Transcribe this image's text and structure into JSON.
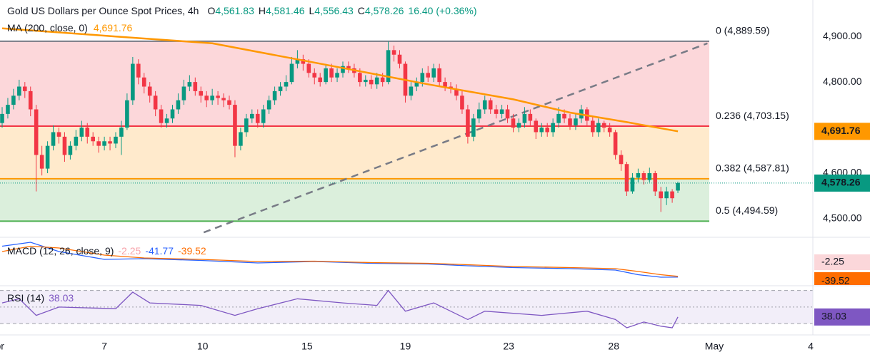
{
  "chart_data": {
    "type": "candlestick",
    "title": "Gold US Dollars per Ounce Spot Prices, 4h",
    "ohlc_legend": [
      {
        "key": "O",
        "label": "4,561.83"
      },
      {
        "key": "H",
        "label": "4,581.46"
      },
      {
        "key": "L",
        "label": "4,556.43"
      },
      {
        "key": "C",
        "label": "4,578.26"
      }
    ],
    "change_label": "16.40 (+0.36%)",
    "last_price_label": "4,578.26",
    "up_color": "#089981",
    "down_color": "#f23645",
    "open": [
      4710,
      4730,
      4750,
      4770,
      4790,
      4780,
      4740,
      4640,
      4610,
      4660,
      4690,
      4680,
      4640,
      4660,
      4680,
      4700,
      4680,
      4670,
      4660,
      4670,
      4665,
      4680,
      4700,
      4760,
      4840,
      4810,
      4790,
      4770,
      4740,
      4710,
      4720,
      4740,
      4760,
      4790,
      4800,
      4780,
      4770,
      4760,
      4770,
      4765,
      4760,
      4750,
      4660,
      4690,
      4720,
      4730,
      4710,
      4740,
      4760,
      4780,
      4790,
      4800,
      4840,
      4850,
      4840,
      4820,
      4810,
      4800,
      4830,
      4810,
      4820,
      4835,
      4830,
      4820,
      4800,
      4805,
      4795,
      4810,
      4800,
      4870,
      4860,
      4840,
      4770,
      4790,
      4800,
      4820,
      4810,
      4830,
      4800,
      4790,
      4785,
      4770,
      4740,
      4680,
      4720,
      4740,
      4760,
      4740,
      4730,
      4740,
      4720,
      4700,
      4710,
      4730,
      4715,
      4690,
      4700,
      4690,
      4710,
      4730,
      4720,
      4705,
      4720,
      4740,
      4715,
      4690,
      4710,
      4700,
      4690,
      4640,
      4620,
      4560,
      4590,
      4600,
      4585,
      4600,
      4560,
      4545,
      4560,
      4561.83
    ],
    "high": [
      4745,
      4765,
      4785,
      4805,
      4800,
      4790,
      4750,
      4660,
      4670,
      4705,
      4700,
      4690,
      4670,
      4695,
      4715,
      4710,
      4690,
      4680,
      4680,
      4680,
      4690,
      4715,
      4775,
      4855,
      4850,
      4820,
      4800,
      4780,
      4750,
      4730,
      4750,
      4775,
      4805,
      4815,
      4810,
      4790,
      4780,
      4785,
      4780,
      4775,
      4770,
      4760,
      4700,
      4730,
      4740,
      4740,
      4750,
      4770,
      4790,
      4800,
      4815,
      4855,
      4870,
      4860,
      4850,
      4830,
      4820,
      4840,
      4840,
      4830,
      4845,
      4845,
      4840,
      4830,
      4815,
      4815,
      4820,
      4820,
      4889,
      4880,
      4870,
      4845,
      4800,
      4810,
      4830,
      4835,
      4840,
      4840,
      4810,
      4800,
      4795,
      4780,
      4750,
      4730,
      4755,
      4770,
      4765,
      4750,
      4750,
      4750,
      4730,
      4720,
      4745,
      4740,
      4720,
      4710,
      4710,
      4720,
      4745,
      4740,
      4730,
      4730,
      4750,
      4745,
      4725,
      4720,
      4715,
      4710,
      4695,
      4650,
      4625,
      4600,
      4610,
      4605,
      4612,
      4605,
      4570,
      4570,
      4565,
      4581.46
    ],
    "low": [
      4700,
      4720,
      4740,
      4760,
      4765,
      4725,
      4560,
      4595,
      4600,
      4650,
      4665,
      4625,
      4630,
      4650,
      4670,
      4665,
      4660,
      4645,
      4650,
      4650,
      4655,
      4640,
      4695,
      4750,
      4795,
      4775,
      4755,
      4725,
      4700,
      4700,
      4710,
      4730,
      4750,
      4780,
      4770,
      4755,
      4745,
      4750,
      4750,
      4745,
      4740,
      4635,
      4650,
      4680,
      4710,
      4700,
      4700,
      4730,
      4750,
      4770,
      4780,
      4795,
      4830,
      4825,
      4810,
      4795,
      4790,
      4795,
      4800,
      4800,
      4810,
      4820,
      4810,
      4790,
      4790,
      4785,
      4785,
      4790,
      4795,
      4845,
      4830,
      4755,
      4760,
      4780,
      4790,
      4800,
      4800,
      4790,
      4780,
      4775,
      4760,
      4730,
      4665,
      4670,
      4710,
      4730,
      4730,
      4720,
      4720,
      4710,
      4690,
      4690,
      4700,
      4705,
      4675,
      4680,
      4680,
      4680,
      4700,
      4710,
      4695,
      4695,
      4710,
      4705,
      4680,
      4680,
      4690,
      4680,
      4630,
      4605,
      4550,
      4555,
      4580,
      4575,
      4580,
      4550,
      4515,
      4530,
      4535,
      4556.43
    ],
    "close": [
      4730,
      4750,
      4770,
      4790,
      4780,
      4740,
      4640,
      4610,
      4660,
      4690,
      4680,
      4640,
      4660,
      4680,
      4700,
      4680,
      4670,
      4660,
      4670,
      4665,
      4680,
      4700,
      4760,
      4840,
      4810,
      4790,
      4770,
      4740,
      4710,
      4720,
      4740,
      4760,
      4790,
      4800,
      4780,
      4770,
      4760,
      4770,
      4765,
      4760,
      4750,
      4660,
      4690,
      4720,
      4730,
      4710,
      4740,
      4760,
      4780,
      4790,
      4800,
      4840,
      4850,
      4840,
      4820,
      4810,
      4800,
      4830,
      4810,
      4820,
      4835,
      4830,
      4820,
      4800,
      4805,
      4795,
      4810,
      4800,
      4870,
      4860,
      4840,
      4770,
      4790,
      4800,
      4820,
      4810,
      4830,
      4800,
      4790,
      4785,
      4770,
      4740,
      4680,
      4720,
      4740,
      4760,
      4740,
      4730,
      4740,
      4720,
      4700,
      4710,
      4730,
      4715,
      4690,
      4700,
      4690,
      4710,
      4730,
      4720,
      4705,
      4720,
      4740,
      4715,
      4690,
      4710,
      4700,
      4690,
      4640,
      4620,
      4560,
      4590,
      4600,
      4585,
      4600,
      4560,
      4545,
      4560,
      4545,
      4578.26
    ],
    "ylim": [
      4464,
      4980
    ],
    "yticks": [
      {
        "value": 4900,
        "label": "4,900.00"
      },
      {
        "value": 4800,
        "label": "4,800.00"
      },
      {
        "value": 4600,
        "label": "4,600.00"
      },
      {
        "value": 4500,
        "label": "4,500.00"
      }
    ],
    "xticks": [
      {
        "value": -1,
        "label": "Apr"
      },
      {
        "value": 18,
        "label": "7"
      },
      {
        "value": 35.3,
        "label": "10"
      },
      {
        "value": 53.7,
        "label": "15"
      },
      {
        "value": 71,
        "label": "19"
      },
      {
        "value": 89.2,
        "label": "23"
      },
      {
        "value": 107.7,
        "label": "28"
      },
      {
        "value": 125.4,
        "label": "May"
      },
      {
        "value": 142.4,
        "label": "4"
      }
    ],
    "ma": {
      "name": "MA (200, close, 0)",
      "value_label": "4,691.76",
      "color": "#ff9800",
      "x": [
        0,
        20,
        37,
        54,
        75,
        90,
        100,
        110,
        119
      ],
      "values": [
        4918,
        4900,
        4885,
        4845,
        4795,
        4762,
        4733,
        4712,
        4691.76
      ]
    },
    "trendline": {
      "color": "#787b86",
      "x": [
        35.5,
        124.2
      ],
      "values": [
        4470,
        4885
      ]
    },
    "fib_levels": [
      {
        "value": 4889.59,
        "label": "0 (4,889.59)",
        "color": "#787b86"
      },
      {
        "value": 4703.15,
        "label": "0.236 (4,703.15)",
        "color": "#f23645"
      },
      {
        "value": 4587.81,
        "label": "0.382 (4,587.81)",
        "color": "#ff9800"
      },
      {
        "value": 4494.59,
        "label": "0.5 (4,494.59)",
        "color": "#4caf50"
      }
    ],
    "macd": {
      "title": "MACD (12, 26, close, 9)",
      "legend_values": [
        "-2.25",
        "-41.77",
        "-39.52"
      ],
      "ylim": [
        -60,
        66
      ],
      "series": [
        {
          "name": "MACD",
          "color": "#2962ff",
          "x": [
            0,
            5,
            10,
            18,
            25,
            35,
            45,
            55,
            65,
            75,
            82,
            90,
            100,
            108,
            112,
            116,
            119
          ],
          "values": [
            45,
            56,
            30,
            8,
            10,
            5,
            -2,
            2,
            -3,
            -5,
            -10,
            -15,
            -18,
            -22,
            -35,
            -42,
            -41.77
          ]
        },
        {
          "name": "Signal",
          "color": "#ff6d00",
          "x": [
            0,
            5,
            10,
            18,
            25,
            35,
            45,
            55,
            65,
            75,
            82,
            90,
            100,
            108,
            112,
            116,
            119
          ],
          "values": [
            30,
            45,
            40,
            20,
            12,
            8,
            2,
            3,
            -1,
            -3,
            -7,
            -12,
            -15,
            -18,
            -26,
            -35,
            -39.52
          ]
        }
      ]
    },
    "rsi": {
      "title": "RSI (14)",
      "value_label": "38.03",
      "color": "#7e57c2",
      "ylim": [
        25,
        74
      ],
      "levels": [
        70,
        50,
        30
      ],
      "x": [
        0,
        3,
        6,
        10,
        20,
        23,
        26,
        35,
        41,
        45,
        52,
        60,
        66,
        68,
        71,
        76,
        82,
        85,
        95,
        103,
        108,
        110,
        113,
        116,
        118,
        119
      ],
      "values": [
        55,
        60,
        40,
        50,
        48,
        68,
        55,
        52,
        40,
        48,
        60,
        55,
        52,
        70,
        45,
        55,
        35,
        45,
        40,
        45,
        35,
        25,
        32,
        27,
        25,
        38.03
      ]
    }
  }
}
